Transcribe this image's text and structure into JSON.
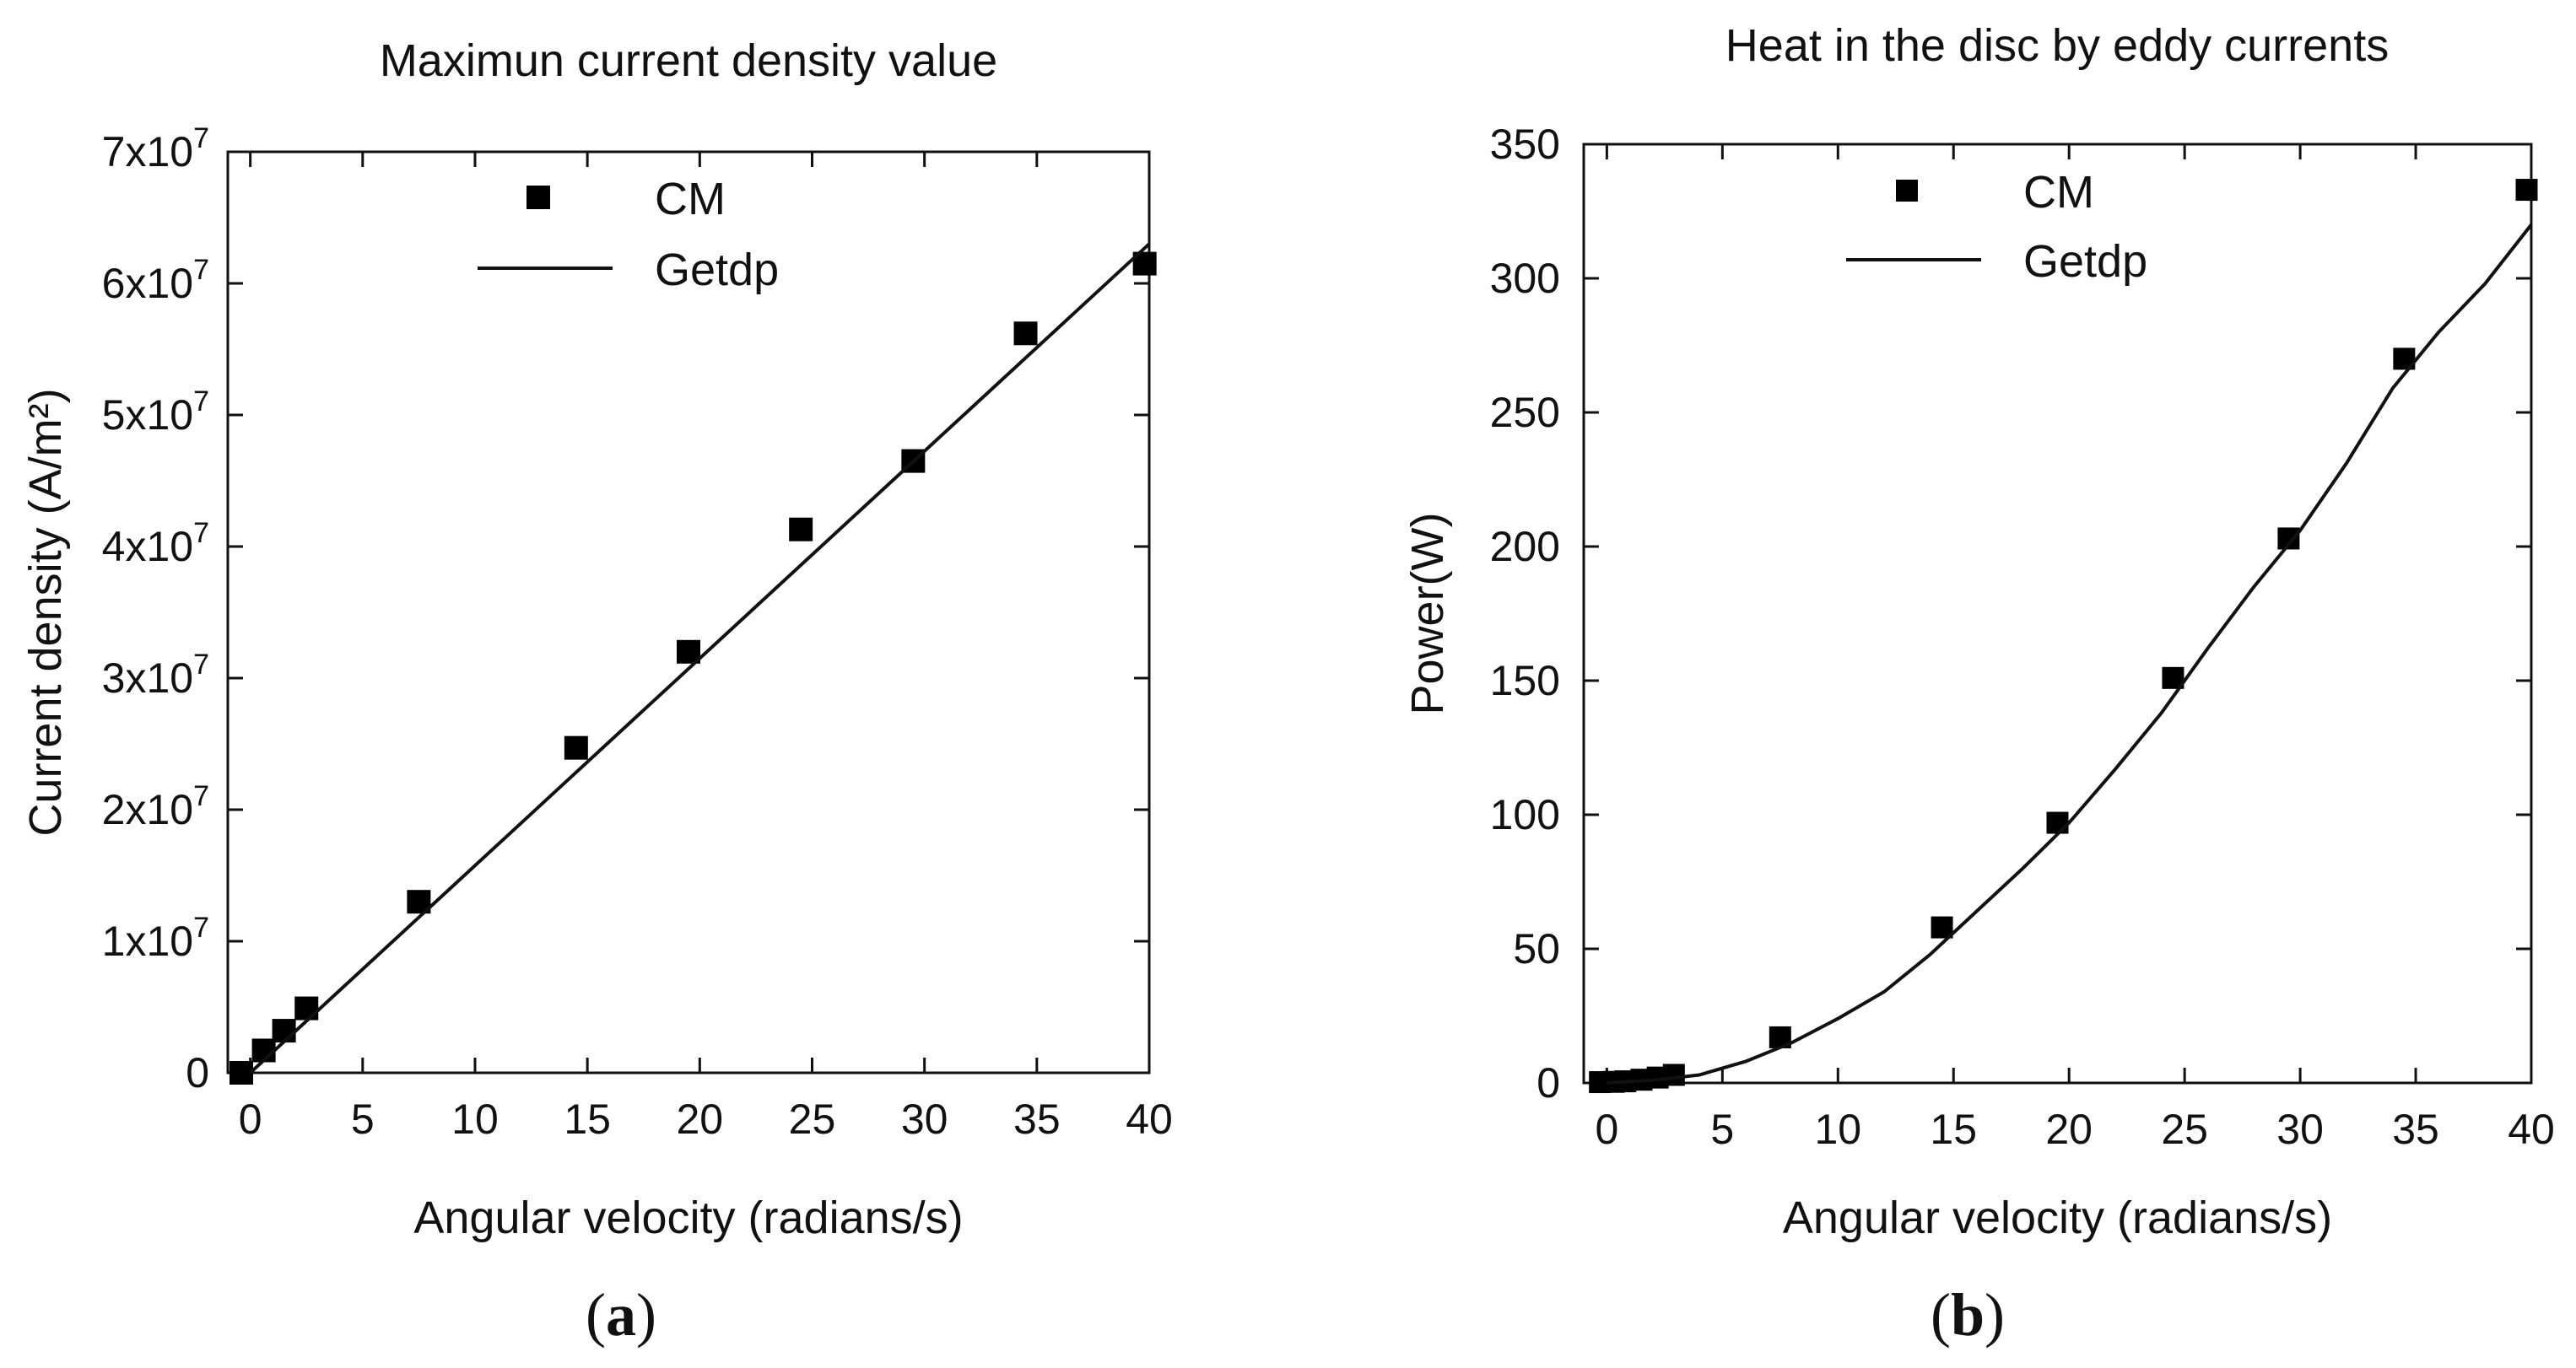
{
  "chart_data": [
    {
      "type": "scatter",
      "panel_label": "a",
      "title": "Maximun current density value",
      "xlabel": "Angular velocity (radians/s)",
      "ylabel": "Current density (A/m²)",
      "xlim": [
        -1,
        40
      ],
      "ylim": [
        0,
        70000000
      ],
      "xticks": [
        0,
        5,
        10,
        15,
        20,
        25,
        30,
        35,
        40
      ],
      "xtick_labels": [
        "0",
        "5",
        "10",
        "15",
        "20",
        "25",
        "30",
        "35",
        "40"
      ],
      "yticks": [
        0,
        10000000,
        20000000,
        30000000,
        40000000,
        50000000,
        60000000,
        70000000
      ],
      "ytick_labels": [
        {
          "mantissa": "0",
          "exp": ""
        },
        {
          "mantissa": "1x10",
          "exp": "7"
        },
        {
          "mantissa": "2x10",
          "exp": "7"
        },
        {
          "mantissa": "3x10",
          "exp": "7"
        },
        {
          "mantissa": "4x10",
          "exp": "7"
        },
        {
          "mantissa": "5x10",
          "exp": "7"
        },
        {
          "mantissa": "6x10",
          "exp": "7"
        },
        {
          "mantissa": "7x10",
          "exp": "7"
        }
      ],
      "legend": {
        "position": "top-center",
        "entries": [
          "CM",
          "Getdp"
        ]
      },
      "series": [
        {
          "name": "CM",
          "kind": "markers",
          "x": [
            -0.4,
            0.6,
            1.5,
            2.5,
            7.5,
            14.5,
            19.5,
            24.5,
            29.5,
            34.5,
            39.8
          ],
          "y": [
            0,
            1700000,
            3200000,
            4900000,
            13000000,
            24700000,
            32000000,
            41300000,
            46500000,
            56200000,
            61500000
          ]
        },
        {
          "name": "Getdp",
          "kind": "line",
          "x": [
            0,
            40
          ],
          "y": [
            0,
            63000000
          ]
        }
      ]
    },
    {
      "type": "scatter",
      "panel_label": "b",
      "title": "Heat in the disc by eddy currents",
      "xlabel": "Angular velocity (radians/s)",
      "ylabel": "Power(W)",
      "xlim": [
        -1,
        40
      ],
      "ylim": [
        0,
        350
      ],
      "xticks": [
        0,
        5,
        10,
        15,
        20,
        25,
        30,
        35,
        40
      ],
      "xtick_labels": [
        "0",
        "5",
        "10",
        "15",
        "20",
        "25",
        "30",
        "35",
        "40"
      ],
      "yticks": [
        0,
        50,
        100,
        150,
        200,
        250,
        300,
        350
      ],
      "ytick_labels": [
        {
          "mantissa": "0",
          "exp": ""
        },
        {
          "mantissa": "50",
          "exp": ""
        },
        {
          "mantissa": "100",
          "exp": ""
        },
        {
          "mantissa": "150",
          "exp": ""
        },
        {
          "mantissa": "200",
          "exp": ""
        },
        {
          "mantissa": "250",
          "exp": ""
        },
        {
          "mantissa": "300",
          "exp": ""
        },
        {
          "mantissa": "350",
          "exp": ""
        }
      ],
      "legend": {
        "position": "top-center",
        "entries": [
          "CM",
          "Getdp"
        ]
      },
      "series": [
        {
          "name": "CM",
          "kind": "markers",
          "x": [
            -0.3,
            0.3,
            0.8,
            1.5,
            2.2,
            2.9,
            7.5,
            14.5,
            19.5,
            24.5,
            29.5,
            34.5,
            39.8
          ],
          "y": [
            0.3,
            0.4,
            0.6,
            1.2,
            2,
            3,
            17,
            58,
            97,
            151,
            203,
            270,
            333
          ]
        },
        {
          "name": "Getdp",
          "kind": "line",
          "x": [
            0,
            2,
            4,
            6,
            8,
            10,
            12,
            14,
            16,
            18,
            20,
            22,
            24,
            26,
            28,
            30,
            32,
            34,
            36,
            38,
            40
          ],
          "y": [
            0,
            1,
            3,
            8,
            15,
            24,
            34,
            48,
            64,
            80,
            97,
            117,
            138,
            162,
            185,
            206,
            231,
            259,
            280,
            298,
            320
          ]
        }
      ]
    }
  ]
}
